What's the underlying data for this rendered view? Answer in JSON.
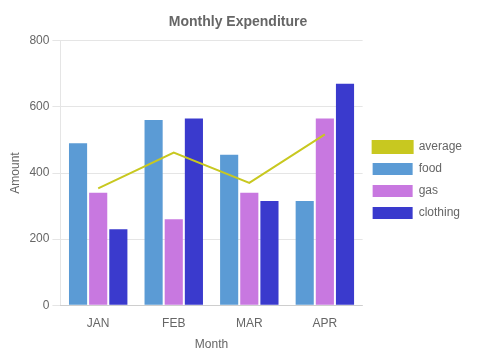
{
  "chart_data": {
    "type": "bar",
    "title": "Monthly Expenditure",
    "x_label": "Month",
    "y_label": "Amount",
    "categories": [
      "JAN",
      "FEB",
      "MAR",
      "APR"
    ],
    "series": [
      {
        "name": "food",
        "color": "#5b9bd5",
        "values": [
          490,
          560,
          455,
          315
        ]
      },
      {
        "name": "gas",
        "color": "#c878e0",
        "values": [
          340,
          260,
          340,
          565
        ]
      },
      {
        "name": "clothing",
        "color": "#3a3acd",
        "values": [
          230,
          565,
          315,
          670
        ]
      },
      {
        "name": "average",
        "type": "line",
        "color": "#c8c820",
        "values": [
          353.3,
          461.7,
          370.0,
          516.7
        ]
      }
    ],
    "ylim": [
      0,
      800
    ],
    "yticks": [
      0,
      200,
      400,
      600,
      800
    ],
    "grid": true,
    "legend": "right"
  }
}
